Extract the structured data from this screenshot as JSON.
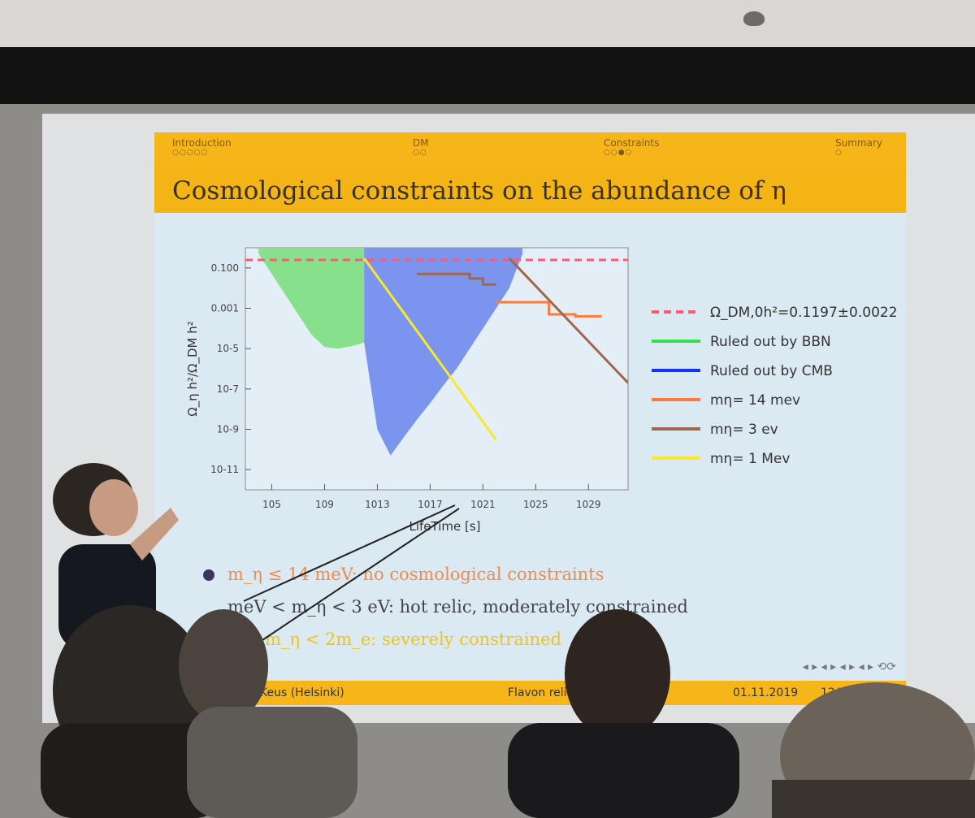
{
  "slide": {
    "nav": [
      {
        "label": "Introduction",
        "dots": "○○○○○"
      },
      {
        "label": "DM",
        "dots": "○○"
      },
      {
        "label": "Constraints",
        "dots": "○○●○"
      },
      {
        "label": "Summary",
        "dots": "○"
      }
    ],
    "title": "Cosmological constraints on the abundance of η",
    "bullets": [
      "m_η ≤ 14 meV: no cosmological constraints",
      "meV < m_η < 3 eV: hot relic, moderately constrained",
      "V < m_η < 2m_e: severely constrained"
    ],
    "footer": {
      "author": "Keus (Helsinki)",
      "talk": "Flavon relic",
      "date": "01.11.2019",
      "page": "12/14"
    },
    "nav_icons": "◂ ▸ ◂ ▸ ◂ ▸ ◂ ▸ ⟲⟳"
  },
  "chart_data": {
    "type": "line",
    "xlabel": "LifeTime [s]",
    "ylabel": "Ω_η h²/Ω_DM h²",
    "x_scale": "log",
    "y_scale": "log",
    "xlim": [
      1000.0,
      1e+32
    ],
    "ylim": [
      1e-12,
      1
    ],
    "x_ticks": [
      "10^5",
      "10^9",
      "10^13",
      "10^17",
      "10^21",
      "10^25",
      "10^29"
    ],
    "y_ticks": [
      "0.100",
      "0.001",
      "10^-5",
      "10^-7",
      "10^-9",
      "10^-11"
    ],
    "legend": [
      {
        "label": "Ω_DM,0h²=0.1197±0.0022",
        "color": "#ff5a6f",
        "style": "dashed"
      },
      {
        "label": "Ruled out by BBN",
        "color": "#33e04a",
        "style": "solid"
      },
      {
        "label": "Ruled out by CMB",
        "color": "#1432ff",
        "style": "solid"
      },
      {
        "label": "mη= 14 mev",
        "color": "#ff7b3a",
        "style": "solid"
      },
      {
        "label": "mη= 3 ev",
        "color": "#a0674a",
        "style": "solid"
      },
      {
        "label": "mη= 1 Mev",
        "color": "#f7e82c",
        "style": "solid"
      }
    ],
    "regions": [
      {
        "name": "Ruled out by BBN",
        "color": "#87e08b",
        "x": [
          10000.0,
          100000.0,
          1000000.0,
          10000000.0,
          100000000.0,
          1000000000.0,
          10000000000.0,
          100000000000.0,
          1000000000000.0,
          1000000000000.0
        ],
        "y_low": [
          0.5,
          0.05,
          0.005,
          0.0005,
          5e-05,
          1.2e-05,
          1e-05,
          1.3e-05,
          2e-05,
          0.5
        ]
      },
      {
        "name": "Ruled out by CMB",
        "color": "#7b94ee",
        "x": [
          1000000000000.0,
          10000000000000.0,
          100000000000000.0,
          1000000000000000.0,
          1e+16,
          1e+17,
          1e+18,
          1e+19,
          1e+20,
          1e+21,
          1e+22,
          1e+23,
          1e+24
        ],
        "y_low": [
          2e-05,
          1e-09,
          5e-11,
          4e-10,
          3e-09,
          2e-08,
          1.5e-07,
          1e-06,
          1e-05,
          0.0001,
          0.001,
          0.01,
          0.5
        ]
      }
    ],
    "series": [
      {
        "name": "Ω_DM,0h²=0.1197±0.0022",
        "x": [
          1000.0,
          1e+32
        ],
        "y": [
          0.25,
          0.25
        ]
      },
      {
        "name": "mη= 14 mev",
        "x": [
          1e+22,
          1e+26,
          1e+26,
          1e+28,
          1e+28,
          1e+30
        ],
        "y": [
          0.002,
          0.002,
          0.0005,
          0.0005,
          0.0004,
          0.0004
        ]
      },
      {
        "name": "mη= 3 ev",
        "x": [
          1e+23,
          1e+32
        ],
        "y": [
          0.3,
          2e-07
        ]
      },
      {
        "name": "mη= 3 ev (step)",
        "x": [
          1e+16,
          1e+20,
          1e+20,
          1e+21,
          1e+21,
          1e+22
        ],
        "y": [
          0.05,
          0.05,
          0.03,
          0.03,
          0.015,
          0.015
        ]
      },
      {
        "name": "mη= 1 Mev",
        "x": [
          1000000000000.0,
          1e+22
        ],
        "y": [
          0.3,
          3e-10
        ]
      }
    ]
  }
}
